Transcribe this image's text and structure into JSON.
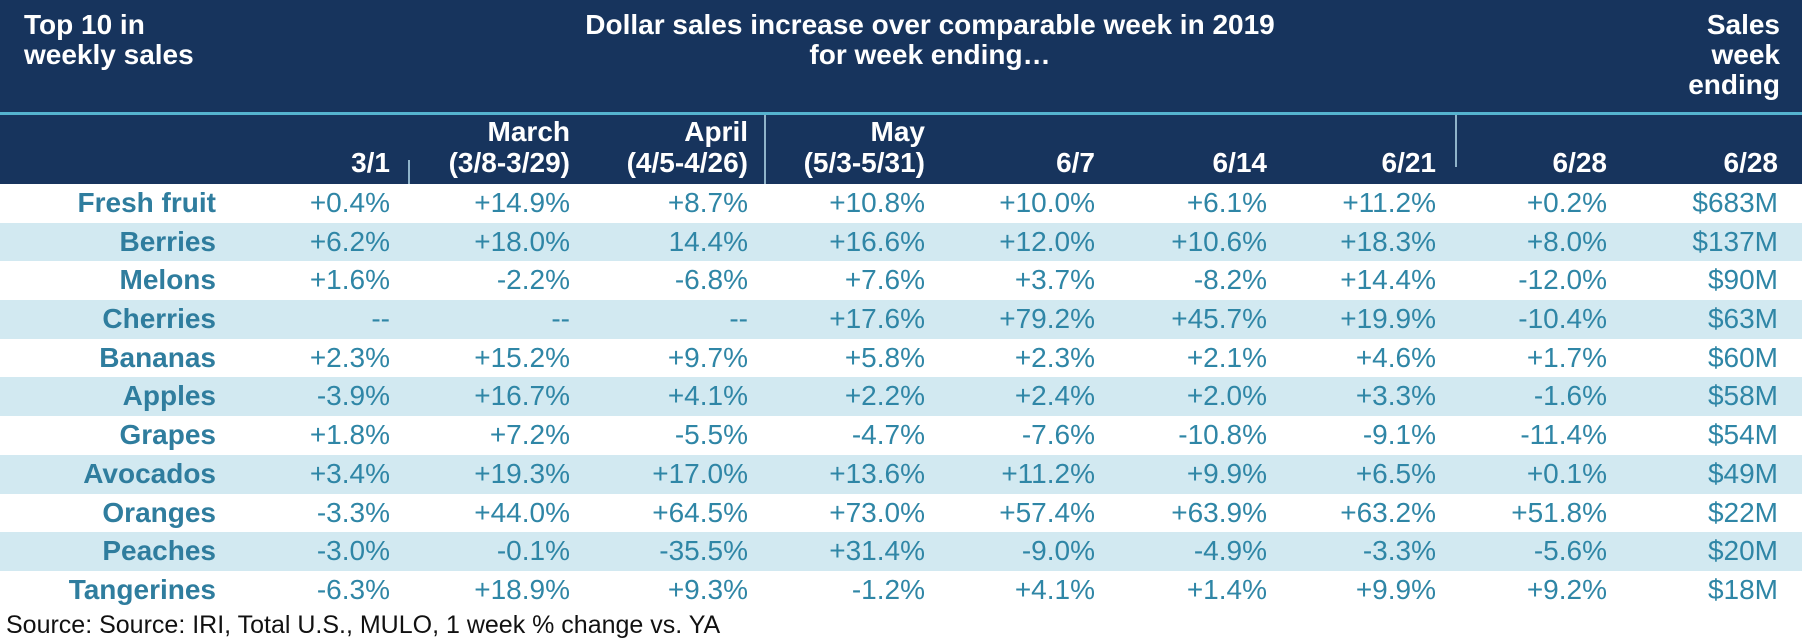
{
  "header": {
    "top_left_line1": "Top 10 in",
    "top_left_line2": "weekly sales",
    "center_line1": "Dollar sales increase over comparable week in 2019",
    "center_line2": "for week ending…",
    "top_right_line1": "Sales",
    "top_right_line2": "week",
    "top_right_line3": "ending"
  },
  "columns": [
    {
      "line1": "",
      "line2": "3/1"
    },
    {
      "line1": "March",
      "line2": "(3/8-3/29)"
    },
    {
      "line1": "April",
      "line2": "(4/5-4/26)"
    },
    {
      "line1": "May",
      "line2": "(5/3-5/31)"
    },
    {
      "line1": "",
      "line2": "6/7"
    },
    {
      "line1": "",
      "line2": "6/14"
    },
    {
      "line1": "",
      "line2": "6/21"
    },
    {
      "line1": "",
      "line2": "6/28"
    },
    {
      "line1": "",
      "line2": "6/28"
    }
  ],
  "rows": [
    {
      "label": "Fresh fruit",
      "values": [
        "+0.4%",
        "+14.9%",
        "+8.7%",
        "+10.8%",
        "+10.0%",
        "+6.1%",
        "+11.2%",
        "+0.2%",
        "$683M"
      ]
    },
    {
      "label": "Berries",
      "values": [
        "+6.2%",
        "+18.0%",
        "14.4%",
        "+16.6%",
        "+12.0%",
        "+10.6%",
        "+18.3%",
        "+8.0%",
        "$137M"
      ]
    },
    {
      "label": "Melons",
      "values": [
        "+1.6%",
        "-2.2%",
        "-6.8%",
        "+7.6%",
        "+3.7%",
        "-8.2%",
        "+14.4%",
        "-12.0%",
        "$90M"
      ]
    },
    {
      "label": "Cherries",
      "values": [
        "--",
        "--",
        "--",
        "+17.6%",
        "+79.2%",
        "+45.7%",
        "+19.9%",
        "-10.4%",
        "$63M"
      ]
    },
    {
      "label": "Bananas",
      "values": [
        "+2.3%",
        "+15.2%",
        "+9.7%",
        "+5.8%",
        "+2.3%",
        "+2.1%",
        "+4.6%",
        "+1.7%",
        "$60M"
      ]
    },
    {
      "label": "Apples",
      "values": [
        "-3.9%",
        "+16.7%",
        "+4.1%",
        "+2.2%",
        "+2.4%",
        "+2.0%",
        "+3.3%",
        "-1.6%",
        "$58M"
      ]
    },
    {
      "label": "Grapes",
      "values": [
        "+1.8%",
        "+7.2%",
        "-5.5%",
        "-4.7%",
        "-7.6%",
        "-10.8%",
        "-9.1%",
        "-11.4%",
        "$54M"
      ]
    },
    {
      "label": "Avocados",
      "values": [
        "+3.4%",
        "+19.3%",
        "+17.0%",
        "+13.6%",
        "+11.2%",
        "+9.9%",
        "+6.5%",
        "+0.1%",
        "$49M"
      ]
    },
    {
      "label": "Oranges",
      "values": [
        "-3.3%",
        "+44.0%",
        "+64.5%",
        "+73.0%",
        "+57.4%",
        "+63.9%",
        "+63.2%",
        "+51.8%",
        "$22M"
      ]
    },
    {
      "label": "Peaches",
      "values": [
        "-3.0%",
        "-0.1%",
        "-35.5%",
        "+31.4%",
        "-9.0%",
        "-4.9%",
        "-3.3%",
        "-5.6%",
        "$20M"
      ]
    },
    {
      "label": "Tangerines",
      "values": [
        "-6.3%",
        "+18.9%",
        "+9.3%",
        "-1.2%",
        "+4.1%",
        "+1.4%",
        "+9.9%",
        "+9.2%",
        "$18M"
      ]
    }
  ],
  "footer": "Source: Source: IRI, Total U.S., MULO, 1 week % change vs. YA",
  "colors": {
    "header_bg": "#17345d",
    "accent_line": "#55b3cf",
    "row_alt_bg": "#d2e9f1",
    "cell_text": "#2f86a6",
    "header_text": "#ffffff"
  }
}
